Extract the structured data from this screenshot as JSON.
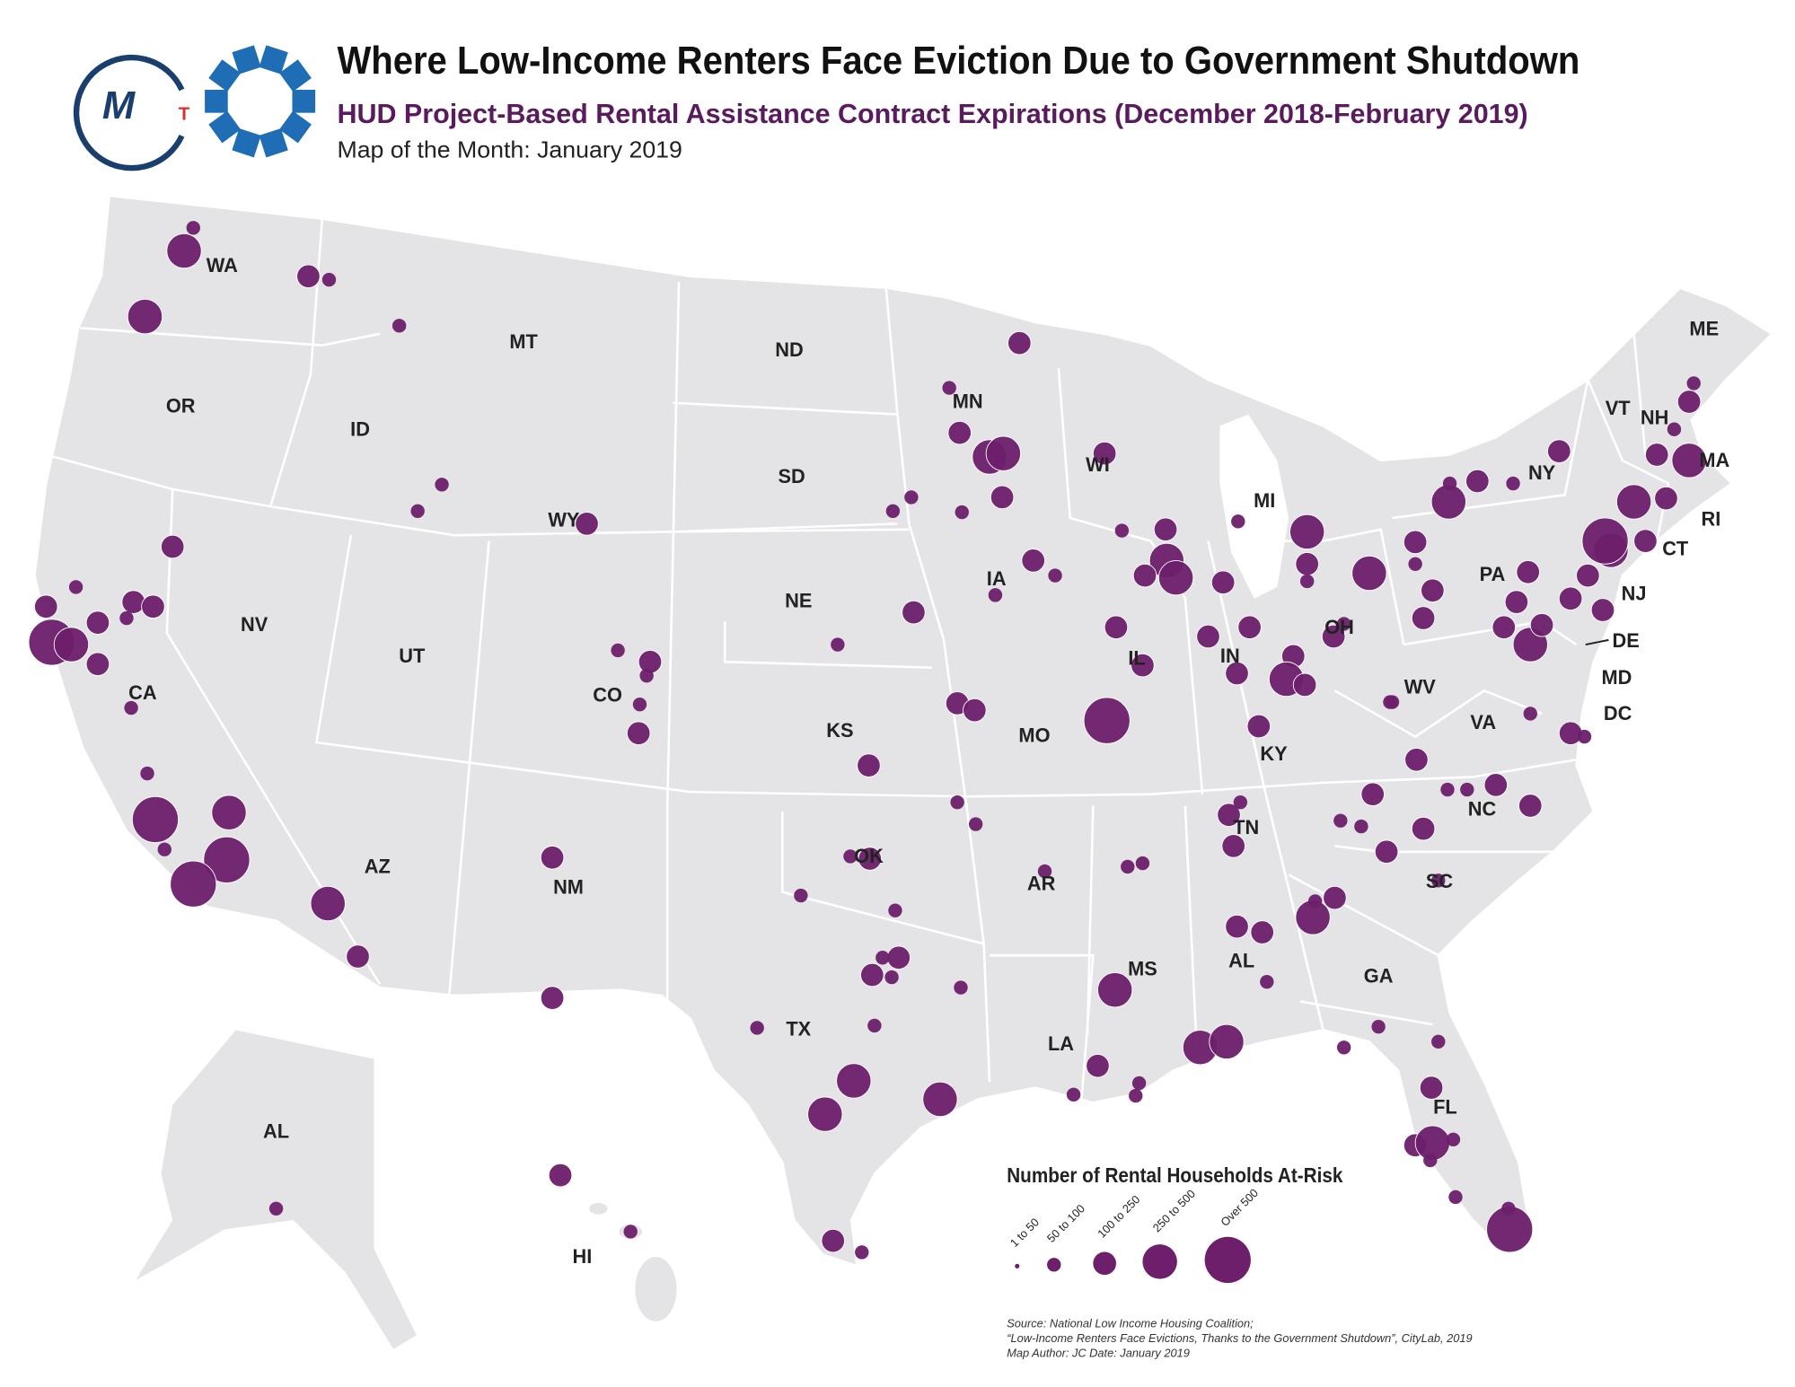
{
  "header": {
    "title": "Where Low-Income Renters Face Eviction Due to Government Shutdown",
    "subtitle": "HUD Project-Based Rental Assistance Contract Expirations (December 2018-February 2019)",
    "caption": "Map of the Month:  January 2019"
  },
  "logo": {
    "letters": [
      "M",
      "T"
    ]
  },
  "states": [
    "WA",
    "OR",
    "CA",
    "NV",
    "ID",
    "MT",
    "WY",
    "UT",
    "AZ",
    "CO",
    "NM",
    "ND",
    "SD",
    "NE",
    "KS",
    "OK",
    "TX",
    "MN",
    "IA",
    "MO",
    "AR",
    "LA",
    "WI",
    "IL",
    "MI",
    "IN",
    "KY",
    "TN",
    "MS",
    "AL",
    "GA",
    "FL",
    "SC",
    "NC",
    "VA",
    "WV",
    "OH",
    "PA",
    "NY",
    "ME",
    "VT",
    "NH",
    "MA",
    "RI",
    "CT",
    "NJ",
    "DE",
    "MD",
    "DC",
    "AL",
    "HI"
  ],
  "legend": {
    "title": "Number of Rental Households At-Risk",
    "classes": [
      "1 to 50",
      "50 to 100",
      "100 to 250",
      "250 to 500",
      "Over 500"
    ]
  },
  "source": [
    "Source: National Low Income Housing Coalition;",
    "“Low-Income Renters Face Evictions, Thanks to the Government Shutdown”, CityLab, 2019",
    "Map Author: JC Date: January 2019"
  ]
}
